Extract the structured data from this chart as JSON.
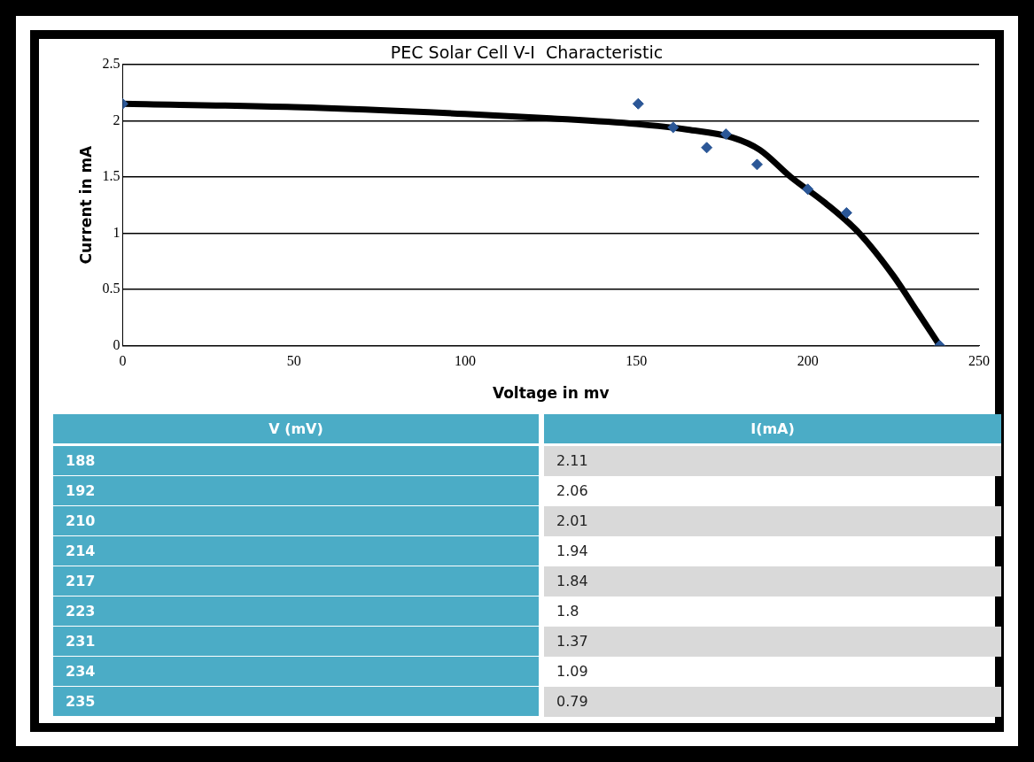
{
  "chart_data": [
    {
      "type": "scatter",
      "title": "PEC Solar Cell V-I  Characteristic",
      "xlabel": "Voltage in mv",
      "ylabel": "Current in mA",
      "xlim": [
        0,
        250
      ],
      "xticks": [
        0,
        50,
        100,
        150,
        200,
        250
      ],
      "ylim": [
        0,
        2.5
      ],
      "yticks": [
        0,
        0.5,
        1,
        1.5,
        2,
        2.5
      ],
      "grid": "y",
      "legend": false,
      "series": [
        {
          "type": "scatter",
          "marker": "diamond",
          "color": "#2b5797",
          "x": [
            0,
            150.5,
            160.7,
            170.5,
            176.1,
            185.2,
            200,
            211.3,
            238.5
          ],
          "values": [
            2.15,
            2.15,
            1.94,
            1.76,
            1.88,
            1.61,
            1.39,
            1.18,
            0
          ]
        },
        {
          "type": "line",
          "marker": "none",
          "line_style": "solid",
          "color": "#000000",
          "x": [
            0,
            50,
            100,
            125,
            150,
            165,
            178,
            186,
            195,
            205,
            215,
            225,
            232,
            238.5
          ],
          "values": [
            2.15,
            2.12,
            2.06,
            2.02,
            1.97,
            1.92,
            1.85,
            1.74,
            1.5,
            1.27,
            1.0,
            0.62,
            0.3,
            0
          ]
        }
      ]
    },
    {
      "type": "other",
      "annotations": [
        "V (mV)",
        "I(mA)",
        "188",
        "2.11",
        "192",
        "2.06",
        "210",
        "2.01",
        "214",
        "1.94",
        "217",
        "1.84",
        "223",
        "1.8",
        "231",
        "1.37",
        "234",
        "1.09",
        "235",
        "0.79"
      ]
    }
  ]
}
